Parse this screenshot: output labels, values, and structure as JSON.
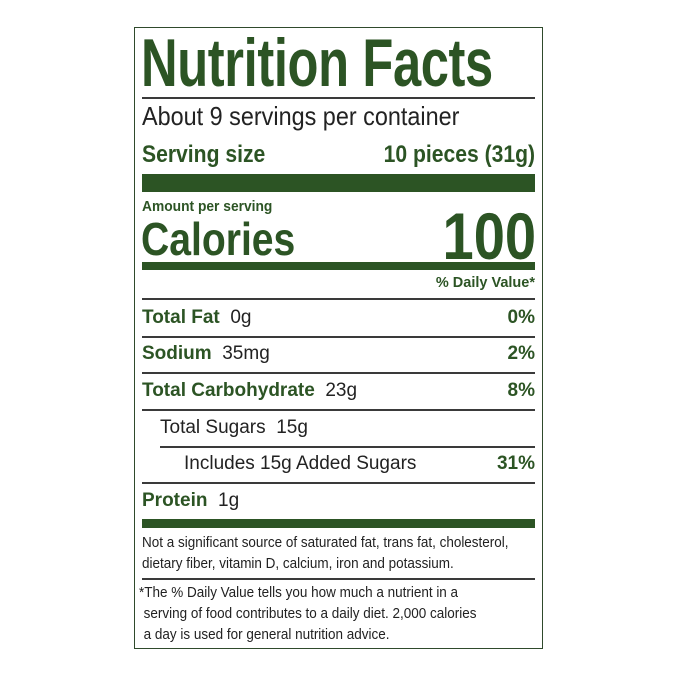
{
  "title": "Nutrition Facts",
  "servings_per_container": "About 9 servings per container",
  "serving_size": {
    "label": "Serving size",
    "value": "10 pieces (31g)"
  },
  "amount_per_serving": "Amount per serving",
  "calories": {
    "label": "Calories",
    "value": "100"
  },
  "daily_value_header": "% Daily Value*",
  "nutrients": [
    {
      "name": "Total Fat",
      "amount": "0g",
      "dv": "0%"
    },
    {
      "name": "Sodium",
      "amount": "35mg",
      "dv": "2%"
    },
    {
      "name": "Total Carbohydrate",
      "amount": "23g",
      "dv": "8%"
    },
    {
      "name": "Total Sugars",
      "amount": "15g",
      "dv": ""
    },
    {
      "name": "Includes 15g Added Sugars",
      "amount": "",
      "dv": "31%"
    },
    {
      "name": "Protein",
      "amount": "1g",
      "dv": ""
    }
  ],
  "not_significant": [
    "Not a significant source of saturated fat, trans fat, cholesterol,",
    "dietary fiber, vitamin D, calcium, iron and potassium."
  ],
  "footnote": [
    "*The % Daily Value tells you how much a nutrient in a",
    "serving of food contributes to a daily diet. 2,000 calories",
    "a day is used for general nutrition advice."
  ],
  "colors": {
    "brand_green": "#2c5424",
    "text": "#222222"
  }
}
